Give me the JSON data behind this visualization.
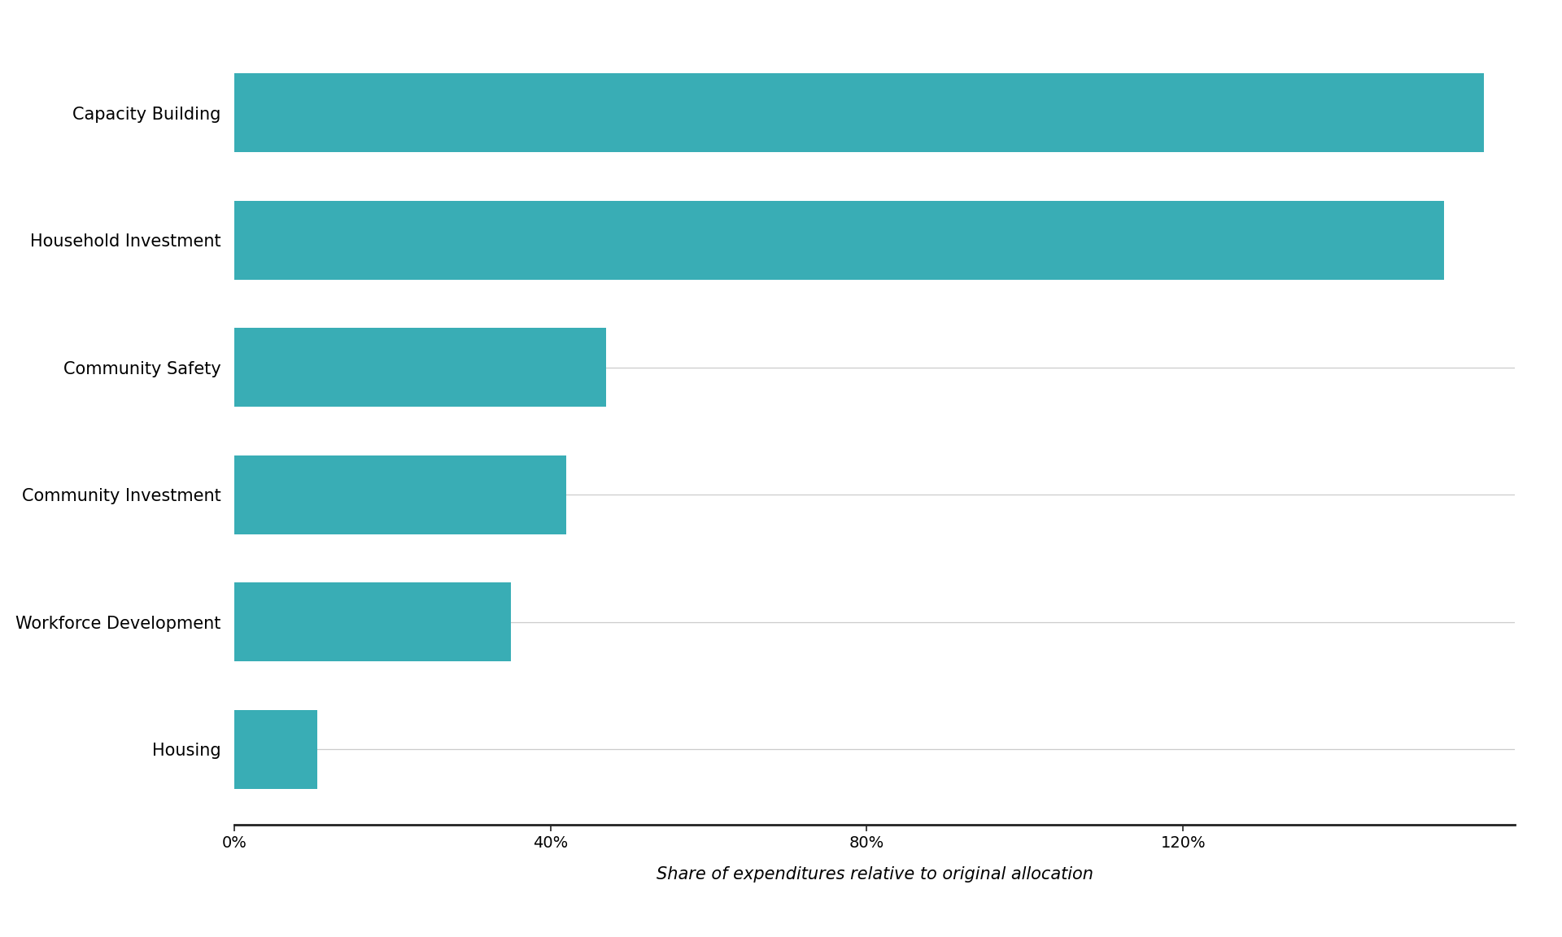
{
  "categories": [
    "Housing",
    "Workforce Development",
    "Community Investment",
    "Community Safety",
    "Household Investment",
    "Capacity Building"
  ],
  "values": [
    10.5,
    35.0,
    42.0,
    47.0,
    153.0,
    158.0
  ],
  "bar_color": "#39adb5",
  "xlabel": "Share of expenditures relative to original allocation",
  "xlim": [
    0,
    162
  ],
  "xticks": [
    0,
    40,
    80,
    120
  ],
  "xticklabels": [
    "0%",
    "40%",
    "80%",
    "120%"
  ],
  "xlabel_fontsize": 15,
  "tick_fontsize": 14,
  "label_fontsize": 15,
  "bar_height": 0.62,
  "figsize": [
    19.2,
    11.52
  ],
  "dpi": 100,
  "background_color": "#ffffff",
  "grid_color": "#cccccc",
  "spine_color": "#222222"
}
